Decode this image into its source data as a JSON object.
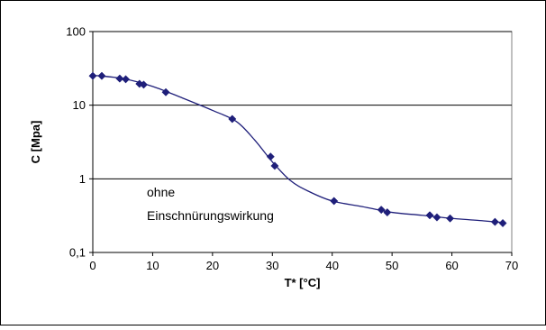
{
  "chart_data": {
    "type": "line",
    "xlabel": "T* [°C]",
    "ylabel": "C [Mpa]",
    "y_scale": "log",
    "xlim": [
      0,
      70
    ],
    "ylim": [
      0.1,
      100
    ],
    "x_ticks": [
      "0",
      "10",
      "20",
      "30",
      "40",
      "50",
      "60",
      "70"
    ],
    "y_ticks": [
      "0,1",
      "1",
      "10",
      "100"
    ],
    "grid": "horizontal major lines at 1, 10, 100",
    "annotation": [
      "ohne",
      "Einschnürungswirkung"
    ],
    "series": [
      {
        "marker": "diamond",
        "color": "#1f1f7a",
        "points": [
          [
            0,
            25
          ],
          [
            1.5,
            25
          ],
          [
            4.5,
            23
          ],
          [
            5.5,
            22.5
          ],
          [
            7.8,
            19.5
          ],
          [
            8.5,
            19
          ],
          [
            12.2,
            15
          ],
          [
            23.3,
            6.5
          ],
          [
            29.7,
            2.0
          ],
          [
            30.4,
            1.5
          ],
          [
            40.3,
            0.5
          ],
          [
            48.2,
            0.38
          ],
          [
            49.2,
            0.35
          ],
          [
            56.3,
            0.32
          ],
          [
            57.5,
            0.3
          ],
          [
            59.7,
            0.29
          ],
          [
            67.2,
            0.26
          ],
          [
            68.5,
            0.25
          ]
        ]
      }
    ],
    "curve": [
      [
        0,
        25.5
      ],
      [
        5,
        23
      ],
      [
        10,
        18
      ],
      [
        15,
        12.5
      ],
      [
        20,
        8.5
      ],
      [
        24,
        6
      ],
      [
        27,
        3.4
      ],
      [
        30,
        1.7
      ],
      [
        33,
        0.95
      ],
      [
        36,
        0.68
      ],
      [
        40,
        0.5
      ],
      [
        45,
        0.42
      ],
      [
        50,
        0.35
      ],
      [
        55,
        0.32
      ],
      [
        60,
        0.29
      ],
      [
        65,
        0.27
      ],
      [
        68.5,
        0.255
      ]
    ]
  }
}
